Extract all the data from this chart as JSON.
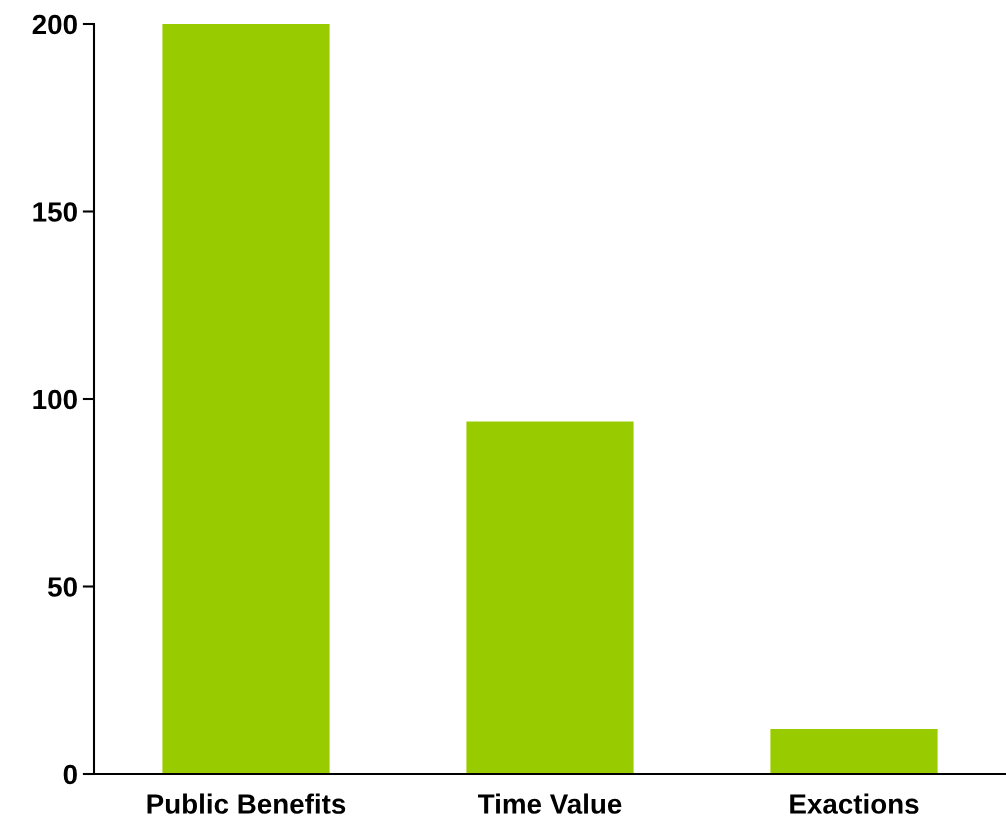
{
  "chart_data": {
    "type": "bar",
    "categories": [
      "Public Benefits",
      "Time Value",
      "Exactions"
    ],
    "values": [
      200,
      94,
      12
    ],
    "color": "#99cc00",
    "ylim": [
      0,
      200
    ],
    "yticks": [
      0,
      50,
      100,
      150,
      200
    ],
    "grid": false
  }
}
